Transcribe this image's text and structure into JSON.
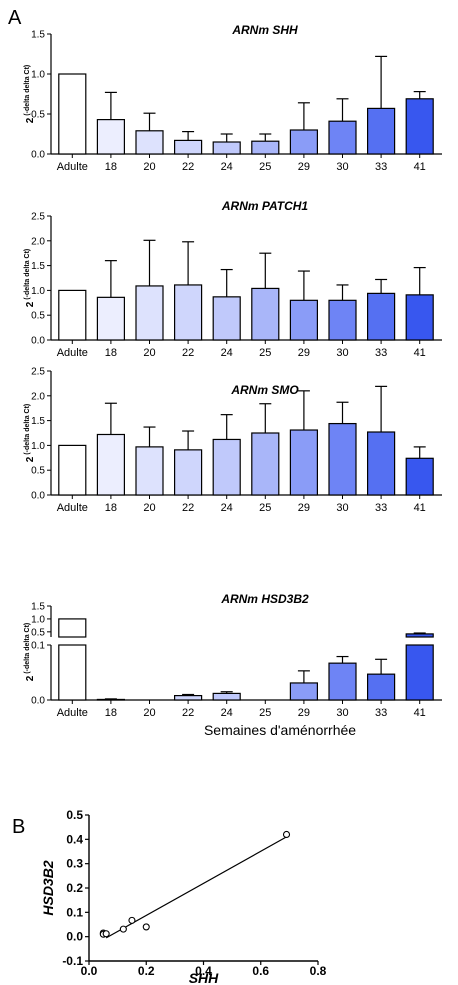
{
  "panels": {
    "a": "A",
    "b": "B"
  },
  "common": {
    "categories": [
      "Adulte",
      "18",
      "20",
      "22",
      "24",
      "25",
      "29",
      "30",
      "33",
      "41"
    ],
    "colors": [
      "#ffffff",
      "#eceefe",
      "#dde2fd",
      "#cfd6fc",
      "#c0c9fb",
      "#a9b6f9",
      "#8a9cf7",
      "#6e84f5",
      "#5570f2",
      "#3857ef"
    ],
    "ylabel_main": "2",
    "ylabel_sup": "(-delta delta  Ct)",
    "xlabel": "Semaines d'aménorrhée"
  },
  "chart_data": [
    {
      "type": "bar",
      "title": "ARNm SHH",
      "categories": [
        "Adulte",
        "18",
        "20",
        "22",
        "24",
        "25",
        "29",
        "30",
        "33",
        "41"
      ],
      "values": [
        1.0,
        0.43,
        0.29,
        0.17,
        0.15,
        0.16,
        0.3,
        0.41,
        0.57,
        0.69
      ],
      "errors": [
        0,
        0.34,
        0.22,
        0.11,
        0.1,
        0.09,
        0.34,
        0.28,
        0.65,
        0.09
      ],
      "ylim": [
        0,
        1.5
      ],
      "yticks": [
        "0.0",
        "0.5",
        "1.0",
        "1.5"
      ],
      "ylabel": "2 (-delta delta Ct)"
    },
    {
      "type": "bar",
      "title": "ARNm PATCH1",
      "categories": [
        "Adulte",
        "18",
        "20",
        "22",
        "24",
        "25",
        "29",
        "30",
        "33",
        "41"
      ],
      "values": [
        1.0,
        0.86,
        1.09,
        1.11,
        0.87,
        1.04,
        0.8,
        0.8,
        0.94,
        0.91
      ],
      "errors": [
        0,
        0.74,
        0.92,
        0.87,
        0.55,
        0.71,
        0.59,
        0.31,
        0.28,
        0.55
      ],
      "ylim": [
        0,
        2.5
      ],
      "yticks": [
        "0.0",
        "0.5",
        "1.0",
        "1.5",
        "2.0",
        "2.5"
      ],
      "ylabel": "2 (-delta delta Ct)"
    },
    {
      "type": "bar",
      "title": "ARNm SMO",
      "categories": [
        "Adulte",
        "18",
        "20",
        "22",
        "24",
        "25",
        "29",
        "30",
        "33",
        "41"
      ],
      "values": [
        1.0,
        1.22,
        0.97,
        0.91,
        1.12,
        1.25,
        1.31,
        1.44,
        1.27,
        0.74
      ],
      "errors": [
        0,
        0.63,
        0.4,
        0.38,
        0.5,
        0.59,
        0.79,
        0.43,
        0.92,
        0.23
      ],
      "ylim": [
        0,
        2.5
      ],
      "yticks": [
        "0.0",
        "0.5",
        "1.0",
        "1.5",
        "2.0",
        "2.5"
      ],
      "ylabel": "2 (-delta delta Ct)"
    },
    {
      "type": "bar",
      "title": "ARNm HSD3B2",
      "categories": [
        "Adulte",
        "18",
        "20",
        "22",
        "24",
        "25",
        "29",
        "30",
        "33",
        "41"
      ],
      "values": [
        1.0,
        0.001,
        0.0,
        0.008,
        0.012,
        0.0,
        0.031,
        0.067,
        0.047,
        0.42
      ],
      "errors": [
        0,
        0.001,
        0,
        0.002,
        0.003,
        0,
        0.022,
        0.012,
        0.027,
        0.03
      ],
      "ylim_lower": [
        0,
        0.1
      ],
      "ylim_upper": [
        0.1,
        1.5
      ],
      "yticks_lower": [
        "0.0",
        "0.1"
      ],
      "yticks_upper": [
        "0.5",
        "1.0",
        "1.5"
      ],
      "ylabel": "2 (-delta delta Ct)",
      "xlabel": "Semaines d'aménorrhée"
    },
    {
      "type": "scatter",
      "xlabel": "SHH",
      "ylabel": "HSD3B2",
      "points": [
        [
          0.05,
          0.015
        ],
        [
          0.05,
          0.01
        ],
        [
          0.06,
          0.012
        ],
        [
          0.12,
          0.031
        ],
        [
          0.15,
          0.067
        ],
        [
          0.2,
          0.04
        ],
        [
          0.69,
          0.42
        ]
      ],
      "fit_line": [
        [
          0.06,
          -0.005
        ],
        [
          0.69,
          0.41
        ]
      ],
      "xlim": [
        0,
        0.8
      ],
      "ylim": [
        -0.1,
        0.5
      ],
      "xticks": [
        "0.0",
        "0.2",
        "0.4",
        "0.6",
        "0.8"
      ],
      "yticks": [
        "-0.1",
        "0.0",
        "0.1",
        "0.2",
        "0.3",
        "0.4",
        "0.5"
      ]
    }
  ]
}
